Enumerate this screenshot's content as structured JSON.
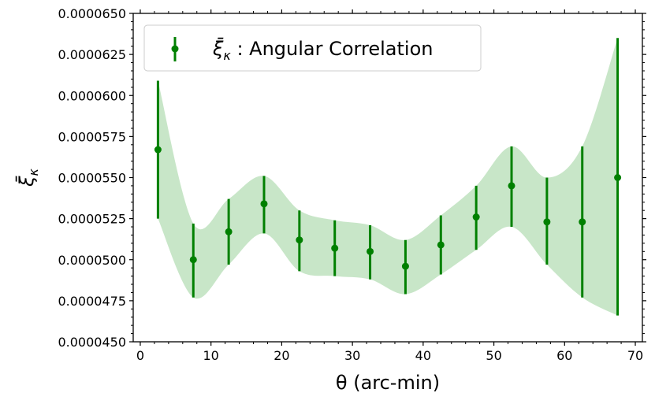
{
  "chart_data": {
    "type": "scatter",
    "series": [
      {
        "name": "ξ̄κ : Angular Correlation",
        "x": [
          2.5,
          7.5,
          12.5,
          17.5,
          22.5,
          27.5,
          32.5,
          37.5,
          42.5,
          47.5,
          52.5,
          57.5,
          62.5,
          67.5
        ],
        "y": [
          5.67e-05,
          5e-05,
          5.17e-05,
          5.34e-05,
          5.12e-05,
          5.07e-05,
          5.05e-05,
          4.96e-05,
          5.09e-05,
          5.26e-05,
          5.45e-05,
          5.23e-05,
          5.23e-05,
          5.5e-05
        ],
        "yerr_low": [
          5.25e-05,
          4.77e-05,
          4.97e-05,
          5.16e-05,
          4.93e-05,
          4.9e-05,
          4.88e-05,
          4.79e-05,
          4.91e-05,
          5.06e-05,
          5.2e-05,
          4.97e-05,
          4.77e-05,
          4.66e-05
        ],
        "yerr_high": [
          6.09e-05,
          5.22e-05,
          5.37e-05,
          5.51e-05,
          5.3e-05,
          5.24e-05,
          5.21e-05,
          5.12e-05,
          5.27e-05,
          5.45e-05,
          5.69e-05,
          5.5e-05,
          5.69e-05,
          6.35e-05
        ],
        "color": "#008000"
      }
    ],
    "band": {
      "x_start": 2.5,
      "x_end": 67.5,
      "color": "#c8e6c8"
    },
    "xlabel": "θ (arc-min)",
    "ylabel": "ξ̄κ",
    "xlim": [
      -1,
      71
    ],
    "ylim": [
      4.5e-05,
      6.5e-05
    ],
    "xticks": [
      0,
      10,
      20,
      30,
      40,
      50,
      60,
      70
    ],
    "xtick_labels": [
      "0",
      "10",
      "20",
      "30",
      "40",
      "50",
      "60",
      "70"
    ],
    "yticks": [
      4.5e-05,
      4.75e-05,
      5e-05,
      5.25e-05,
      5.5e-05,
      5.75e-05,
      6e-05,
      6.25e-05,
      6.5e-05
    ],
    "ytick_labels": [
      "0.0000450",
      "0.0000475",
      "0.0000500",
      "0.0000525",
      "0.0000550",
      "0.0000575",
      "0.0000600",
      "0.0000625",
      "0.0000650"
    ],
    "legend": {
      "label_symbol": "ξ̄",
      "label_subscript": "κ",
      "label_rest": " : Angular Correlation",
      "position": "top-left"
    },
    "grid": false
  }
}
